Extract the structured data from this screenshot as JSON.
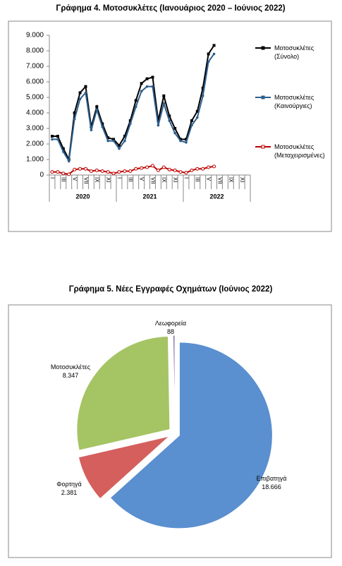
{
  "chart_data": [
    {
      "type": "line",
      "title": "Γράφημα 4. Μοτοσυκλέτες (Ιανουάριος 2020 – Ιούνιος 2022)",
      "categories": [
        "I",
        null,
        "III",
        null,
        "V",
        null,
        "VII",
        null,
        "IX",
        null,
        "XI",
        null,
        "I",
        null,
        "III",
        null,
        "V",
        null,
        "VII",
        null,
        "IX",
        null,
        "XI",
        null,
        "I",
        null,
        "III",
        null,
        "V",
        null,
        "VII",
        null,
        "IX",
        null,
        "XI",
        null
      ],
      "years": [
        "2020",
        "2021",
        "2022"
      ],
      "series": [
        {
          "name": "Μοτοσυκλέτες (Σύνολο)",
          "color": "#000000",
          "values": [
            2500,
            2500,
            1700,
            1000,
            4000,
            5300,
            5700,
            3100,
            4400,
            3300,
            2400,
            2300,
            1900,
            2500,
            3500,
            4800,
            5900,
            6200,
            6300,
            3500,
            5100,
            3800,
            3000,
            2300,
            2300,
            3500,
            4100,
            5600,
            7800,
            8347,
            null,
            null,
            null,
            null,
            null,
            null
          ]
        },
        {
          "name": "Μοτοσυκλέτες (Καινούργιες)",
          "color": "#2e5e8c",
          "values": [
            2300,
            2300,
            1500,
            900,
            3600,
            4900,
            5300,
            2900,
            4200,
            3100,
            2200,
            2200,
            1700,
            2200,
            3300,
            4400,
            5400,
            5700,
            5700,
            3200,
            4600,
            3500,
            2700,
            2200,
            2100,
            3200,
            3700,
            5100,
            7300,
            7800,
            null,
            null,
            null,
            null,
            null,
            null
          ]
        },
        {
          "name": "Μοτοσυκλέτες (Μεταχειρισμένες)",
          "color": "#c00000",
          "values": [
            200,
            200,
            100,
            50,
            350,
            400,
            400,
            250,
            300,
            250,
            200,
            100,
            200,
            250,
            250,
            400,
            450,
            500,
            600,
            300,
            500,
            350,
            300,
            200,
            150,
            300,
            400,
            400,
            500,
            550,
            null,
            null,
            null,
            null,
            null,
            null
          ]
        }
      ],
      "ylim": [
        0,
        9000
      ],
      "yticks": [
        0,
        {
          "value": 1000,
          "label": "1.000"
        },
        {
          "value": 2000,
          "label": "2.000"
        },
        {
          "value": 3000,
          "label": "3.000"
        },
        {
          "value": 4000,
          "label": "4.000"
        },
        {
          "value": 5000,
          "label": "5.000"
        },
        {
          "value": 6000,
          "label": "6.000"
        },
        {
          "value": 7000,
          "label": "7.000"
        },
        {
          "value": 8000,
          "label": "8.000"
        },
        {
          "value": 9000,
          "label": "9.000"
        }
      ],
      "grid": false,
      "legend": "right"
    },
    {
      "type": "pie",
      "title": "Γράφημα 5. Νέες Εγγραφές Οχημάτων (Ιούνιος 2022)",
      "categories": [
        "Επιβατηγά",
        "Φορτηγά",
        "Μοτοσυκλέτες",
        "Λεωφορεία"
      ],
      "values": [
        18666,
        2381,
        8347,
        88
      ],
      "value_labels": [
        "18.666",
        "2.381",
        "8.347",
        "88"
      ],
      "colors": [
        "#5a8fd0",
        "#d45f5c",
        "#a5c464",
        "#8064a2"
      ]
    }
  ]
}
